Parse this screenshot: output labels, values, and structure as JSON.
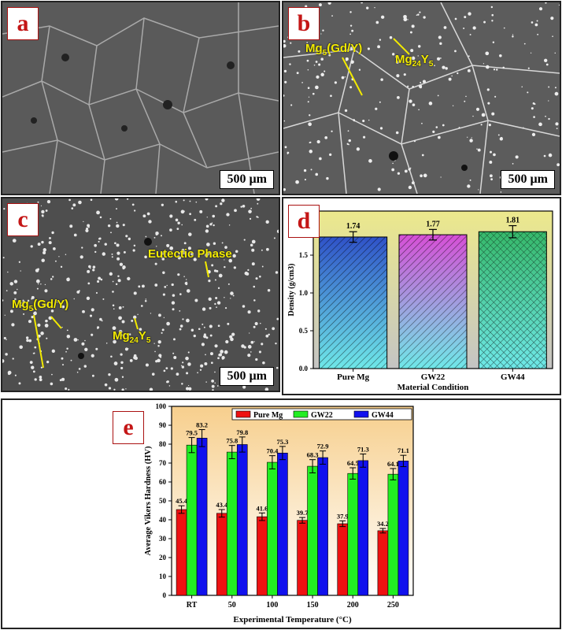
{
  "panels": {
    "a": {
      "label": "a",
      "scale": "500 µm"
    },
    "b": {
      "label": "b",
      "scale": "500 µm",
      "ann1_main": "Mg",
      "ann1_sub": "5",
      "ann1_rest": "(Gd/Y)",
      "ann2_main": "Mg",
      "ann2_sub": "24",
      "ann2_rest": "Y",
      "ann2_sub2": "5"
    },
    "c": {
      "label": "c",
      "scale": "500 µm",
      "ann1_main": "Mg",
      "ann1_sub": "5",
      "ann1_rest": "(Gd/Y)",
      "ann2_main": "Mg",
      "ann2_sub": "24",
      "ann2_rest": "Y",
      "ann2_sub2": "5",
      "ann3": "Eutectic Phase"
    },
    "d": {
      "label": "d"
    },
    "e": {
      "label": "e"
    }
  },
  "chart_data": [
    {
      "type": "bar",
      "panel": "d",
      "categories": [
        "Pure Mg",
        "GW22",
        "GW44"
      ],
      "values": [
        1.74,
        1.77,
        1.81
      ],
      "errors": [
        0.07,
        0.07,
        0.08
      ],
      "value_labels": [
        "1.74",
        "1.77",
        "1.81"
      ],
      "xlabel": "Material Condition",
      "ylabel": "Density (g/cm3)",
      "ylim": [
        0,
        2.0
      ],
      "yticks": [
        "0.0",
        "0.5",
        "1.0",
        "1.5",
        "2.0"
      ],
      "bar_colors": [
        "#2f52c8",
        "#d64fd6",
        "#36b86a"
      ],
      "gradient_end": "#6fe8e8",
      "background_top": "#ece98c",
      "background_bottom": "#c4c4c4",
      "grid": false
    },
    {
      "type": "bar",
      "panel": "e",
      "categories": [
        "RT",
        "50",
        "100",
        "150",
        "200",
        "250"
      ],
      "series": [
        {
          "name": "Pure Mg",
          "color": "#ee1111",
          "values": [
            45.4,
            43.4,
            41.6,
            39.7,
            37.9,
            34.2
          ],
          "errors": [
            2.0,
            2.0,
            2.0,
            1.5,
            1.5,
            1.2
          ],
          "labels": [
            "45.4",
            "43.4",
            "41.6",
            "39.7",
            "37.9",
            "34.2"
          ]
        },
        {
          "name": "GW22",
          "color": "#22ee22",
          "values": [
            79.5,
            75.8,
            70.4,
            68.3,
            64.5,
            64.1
          ],
          "errors": [
            4.0,
            3.5,
            3.5,
            3.5,
            3.0,
            3.0
          ],
          "labels": [
            "79.5",
            "75.8",
            "70.4",
            "68.3",
            "64.5",
            "64.1"
          ]
        },
        {
          "name": "GW44",
          "color": "#1111ee",
          "values": [
            83.2,
            79.8,
            75.3,
            72.9,
            71.3,
            71.1
          ],
          "errors": [
            4.5,
            4.0,
            3.5,
            3.5,
            3.5,
            3.0
          ],
          "labels": [
            "83.2",
            "79.8",
            "75.3",
            "72.9",
            "71.3",
            "71.1"
          ]
        }
      ],
      "xlabel": "Experimental Temperature (°C)",
      "ylabel": "Average Vikers Hardness (HV)",
      "ylim": [
        0,
        100
      ],
      "yticks": [
        "0",
        "10",
        "20",
        "30",
        "40",
        "50",
        "60",
        "70",
        "80",
        "90",
        "100"
      ],
      "background_top": "#f7cf8d",
      "background_bottom": "#ffffff",
      "legend": "top",
      "grid": false
    }
  ]
}
